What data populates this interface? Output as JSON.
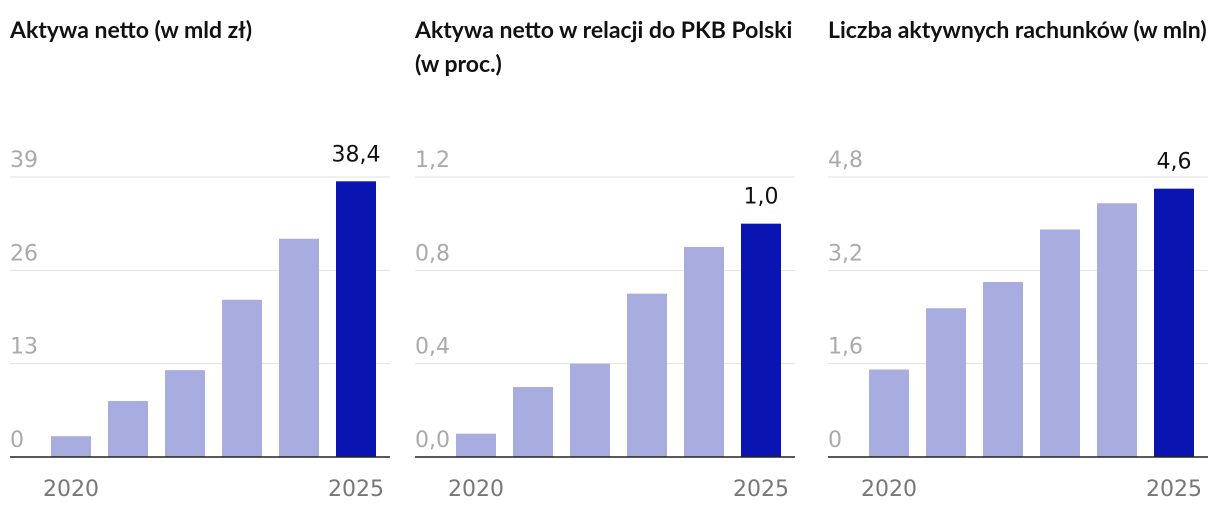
{
  "chart_data": [
    {
      "type": "bar",
      "title": "Aktywa netto (w mld zł)",
      "categories": [
        "2020",
        null,
        null,
        null,
        null,
        "2025"
      ],
      "values": [
        2.9,
        7.8,
        12.1,
        21.9,
        30.4,
        38.4
      ],
      "value_labels": [
        null,
        null,
        null,
        null,
        null,
        "38,4"
      ],
      "colors": [
        "#a9acdf",
        "#a9acdf",
        "#a9acdf",
        "#a9acdf",
        "#a9acdf",
        "#0a14b0"
      ],
      "ylim": [
        0,
        39
      ],
      "yticks": [
        0,
        13,
        26,
        39
      ],
      "grid": true
    },
    {
      "type": "bar",
      "title": "Aktywa netto w relacji do PKB Polski (w proc.)",
      "categories": [
        "2020",
        null,
        null,
        null,
        null,
        "2025"
      ],
      "values": [
        0.1,
        0.3,
        0.4,
        0.7,
        0.9,
        1.0
      ],
      "value_labels": [
        null,
        null,
        null,
        null,
        null,
        "1,0"
      ],
      "colors": [
        "#a9acdf",
        "#a9acdf",
        "#a9acdf",
        "#a9acdf",
        "#a9acdf",
        "#0a14b0"
      ],
      "ylim": [
        0,
        1.2
      ],
      "yticks": [
        {
          "value": 0,
          "label": "0,0"
        },
        {
          "value": 0.4,
          "label": "0,4"
        },
        {
          "value": 0.8,
          "label": "0,8"
        },
        {
          "value": 1.2,
          "label": "1,2"
        }
      ],
      "grid": true
    },
    {
      "type": "bar",
      "title": "Liczba aktywnych rachunków (w mln)",
      "categories": [
        "2020",
        null,
        null,
        null,
        null,
        "2025"
      ],
      "values": [
        1.5,
        2.55,
        3.0,
        3.9,
        4.35,
        4.6
      ],
      "value_labels": [
        null,
        null,
        null,
        null,
        null,
        "4,6"
      ],
      "colors": [
        "#a9acdf",
        "#a9acdf",
        "#a9acdf",
        "#a9acdf",
        "#a9acdf",
        "#0a14b0"
      ],
      "ylim": [
        0,
        4.8
      ],
      "yticks": [
        0,
        {
          "value": 1.6,
          "label": "1,6"
        },
        {
          "value": 3.2,
          "label": "3,2"
        },
        {
          "value": 4.8,
          "label": "4,8"
        }
      ],
      "grid": true
    }
  ]
}
